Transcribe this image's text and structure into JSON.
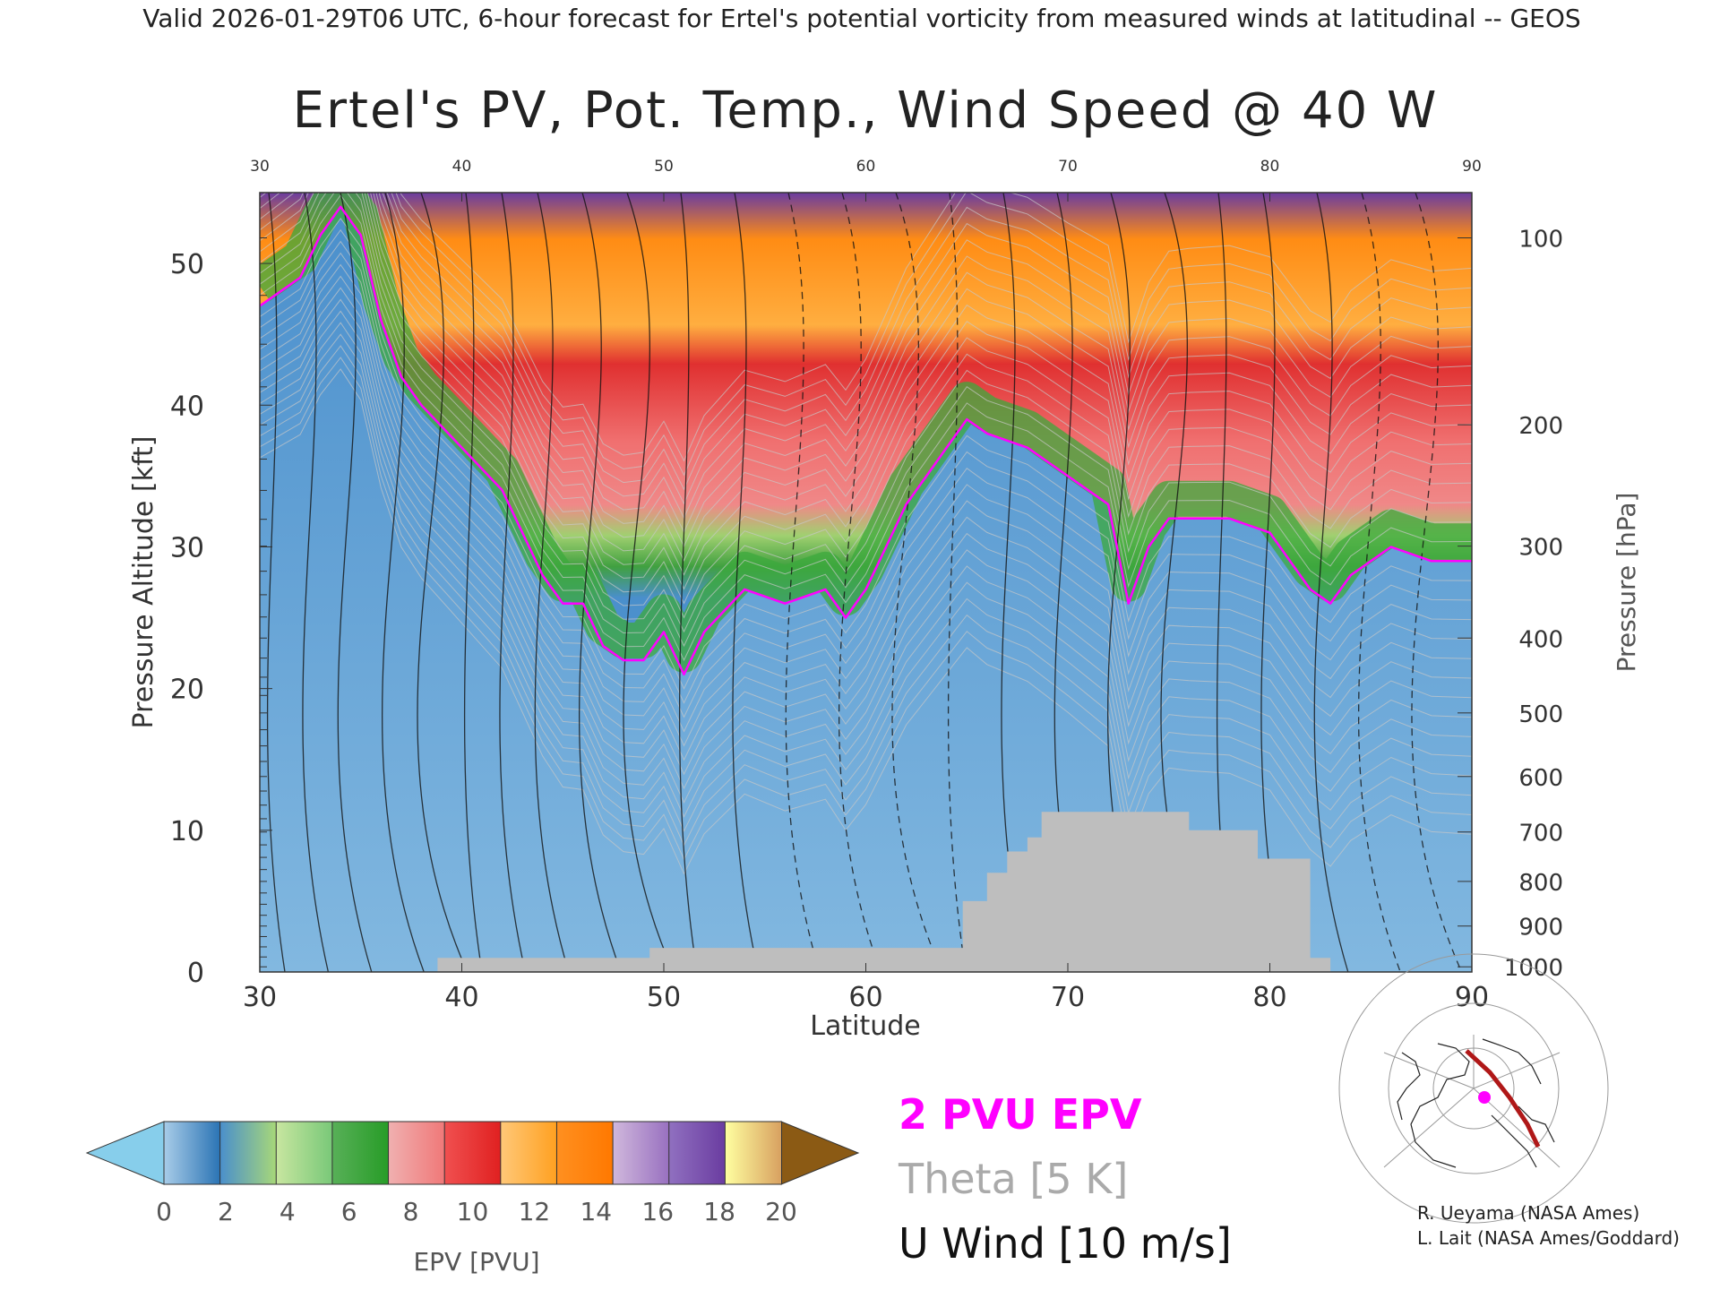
{
  "header": "Valid 2026-01-29T06 UTC, 6-hour forecast for Ertel's potential vorticity from measured winds at latitudinal -- GEOS",
  "chart_data": {
    "type": "heatmap",
    "title": "Ertel's PV, Pot. Temp., Wind Speed @ 40 W",
    "xlabel": "Latitude",
    "ylabel": "Pressure Altitude [kft]",
    "y2label": "Pressure [hPa]",
    "xlim": [
      30,
      90
    ],
    "ylim": [
      0,
      55
    ],
    "x_ticks": [
      30,
      40,
      50,
      60,
      70,
      80,
      90
    ],
    "x_tick_labels": [
      "30",
      "40",
      "50",
      "60",
      "70",
      "80",
      "90"
    ],
    "y_ticks": [
      0,
      10,
      20,
      30,
      40,
      50
    ],
    "y_tick_labels": [
      "0",
      "10",
      "20",
      "30",
      "40",
      "50"
    ],
    "pressure_ticks": [
      {
        "hPa": 100,
        "label": "100"
      },
      {
        "hPa": 200,
        "label": "200"
      },
      {
        "hPa": 300,
        "label": "300"
      },
      {
        "hPa": 400,
        "label": "400"
      },
      {
        "hPa": 500,
        "label": "500"
      },
      {
        "hPa": 600,
        "label": "600"
      },
      {
        "hPa": 700,
        "label": "700"
      },
      {
        "hPa": 800,
        "label": "800"
      },
      {
        "hPa": 900,
        "label": "900"
      },
      {
        "hPa": 1000,
        "label": "1000"
      }
    ],
    "tropopause_2pvu": {
      "name": "2 PVU EPV",
      "lat": [
        30,
        31,
        32,
        33,
        34,
        35,
        36,
        37,
        38,
        40,
        42,
        44,
        45,
        46,
        47,
        48,
        49,
        50,
        51,
        52,
        54,
        56,
        58,
        59,
        60,
        61,
        62,
        63,
        64,
        65,
        66,
        68,
        70,
        71,
        72,
        73,
        74,
        75,
        76,
        78,
        80,
        82,
        83,
        84,
        86,
        88,
        90
      ],
      "kft": [
        47,
        48,
        49,
        52,
        54,
        52,
        46,
        42,
        40,
        37,
        34,
        28,
        26,
        26,
        23,
        22,
        22,
        24,
        21,
        24,
        27,
        26,
        27,
        25,
        27,
        30,
        33,
        35,
        37,
        39,
        38,
        37,
        35,
        34,
        33,
        26,
        30,
        32,
        32,
        32,
        31,
        27,
        26,
        28,
        30,
        29,
        29
      ]
    },
    "surface_mask_kft": {
      "lat": [
        30,
        38.8,
        38.8,
        49.3,
        49.3,
        64.8,
        64.8,
        66,
        66,
        67,
        67,
        68,
        68,
        68.7,
        68.7,
        76,
        76,
        79.4,
        79.4,
        82,
        82,
        83,
        83,
        90
      ],
      "kft": [
        0,
        0,
        1,
        1,
        1.7,
        1.7,
        5,
        5,
        7,
        7,
        8.5,
        8.5,
        9.5,
        9.5,
        11.3,
        11.3,
        10,
        10,
        8,
        8,
        1,
        1,
        0,
        0
      ]
    },
    "colorbar": {
      "label": "EPV [PVU]",
      "tick_labels": [
        "0",
        "2",
        "4",
        "6",
        "8",
        "10",
        "12",
        "14",
        "16",
        "18",
        "20"
      ],
      "under_color": "#87ceeb",
      "over_color": "#8b5a14",
      "segments": [
        [
          "#a8cce8",
          "#2a73b4"
        ],
        [
          "#4a8fcc",
          "#a8d878"
        ],
        [
          "#c8e6a0",
          "#78c878"
        ],
        [
          "#58b058",
          "#279c27"
        ],
        [
          "#f0b0b0",
          "#f07878"
        ],
        [
          "#f05050",
          "#e02020"
        ],
        [
          "#ffc878",
          "#ffa020"
        ],
        [
          "#ff9020",
          "#ff7800"
        ],
        [
          "#d0b8dc",
          "#9870c0"
        ],
        [
          "#9070c0",
          "#6a3ca0"
        ],
        [
          "#ffffa0",
          "#d8a060"
        ]
      ]
    },
    "legend": {
      "pv_label": "2 PVU EPV",
      "theta_label": "Theta [5 K]",
      "wind_label": "U Wind [10 m/s]",
      "pv_color": "#ff00ff",
      "theta_color": "#aaaaaa",
      "wind_color": "#111111"
    }
  },
  "credits": [
    "R. Ueyama (NASA Ames)",
    "L. Lait (NASA Ames/Goddard)"
  ]
}
